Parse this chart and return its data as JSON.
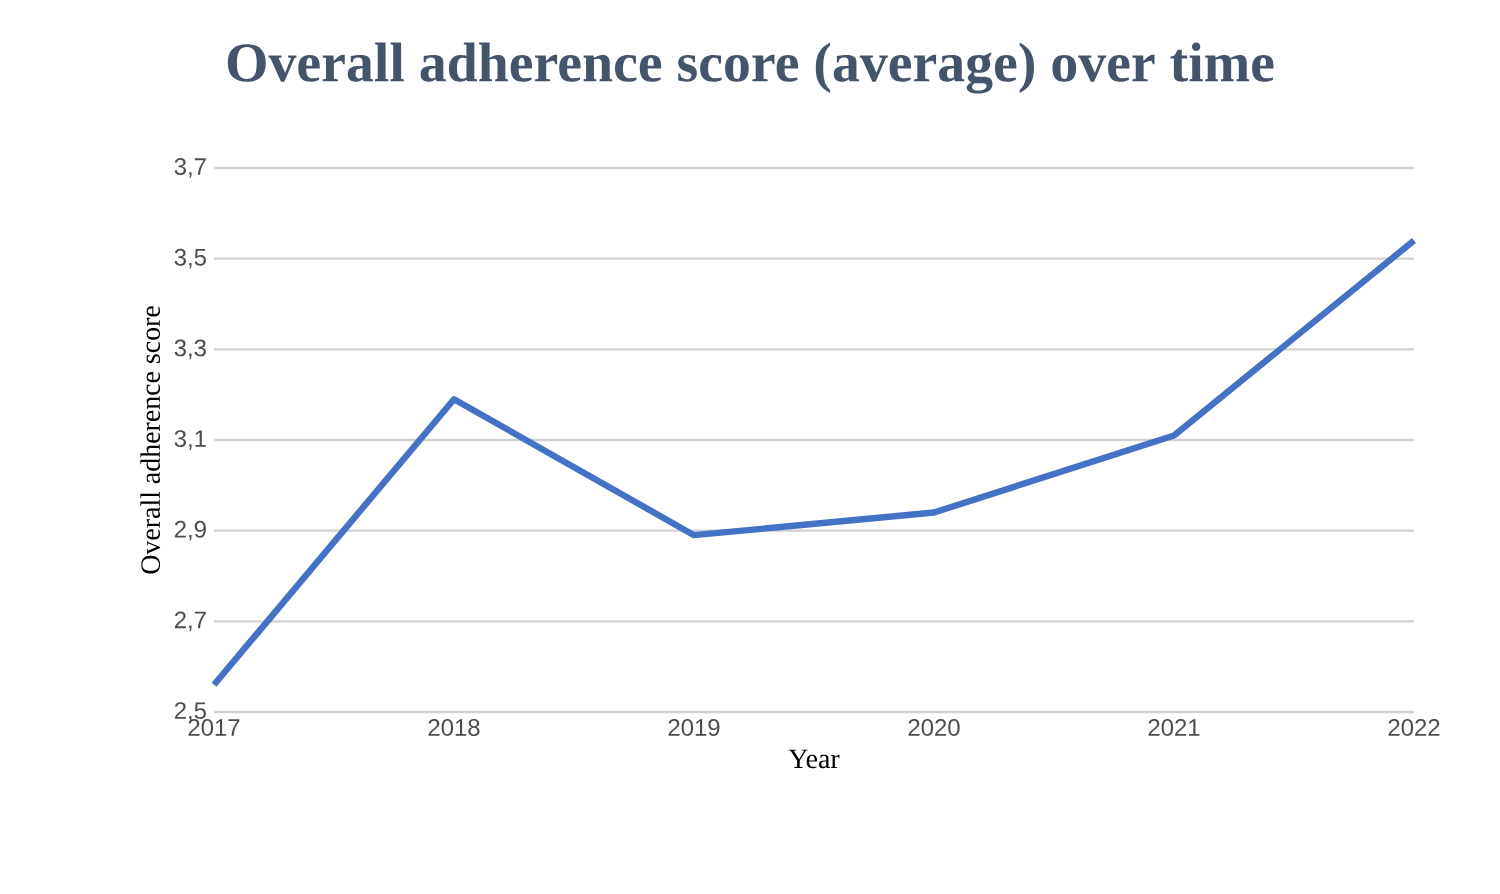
{
  "chart_data": {
    "type": "line",
    "title": "Overall adherence score (average) over time",
    "xlabel": "Year",
    "ylabel": "Overall adherence score",
    "categories": [
      "2017",
      "2018",
      "2019",
      "2020",
      "2021",
      "2022"
    ],
    "series": [
      {
        "color": "#4472c4",
        "values": [
          2.56,
          3.19,
          2.89,
          2.94,
          3.11,
          3.54
        ]
      }
    ],
    "ylim": [
      2.5,
      3.7
    ],
    "yticks": [
      {
        "value": 2.5,
        "label": "2,5"
      },
      {
        "value": 2.7,
        "label": "2,7"
      },
      {
        "value": 2.9,
        "label": "2,9"
      },
      {
        "value": 3.1,
        "label": "3,1"
      },
      {
        "value": 3.3,
        "label": "3,3"
      },
      {
        "value": 3.5,
        "label": "3,5"
      },
      {
        "value": 3.7,
        "label": "3,7"
      }
    ],
    "grid": "y",
    "marker": "none",
    "line_style": "solid"
  }
}
